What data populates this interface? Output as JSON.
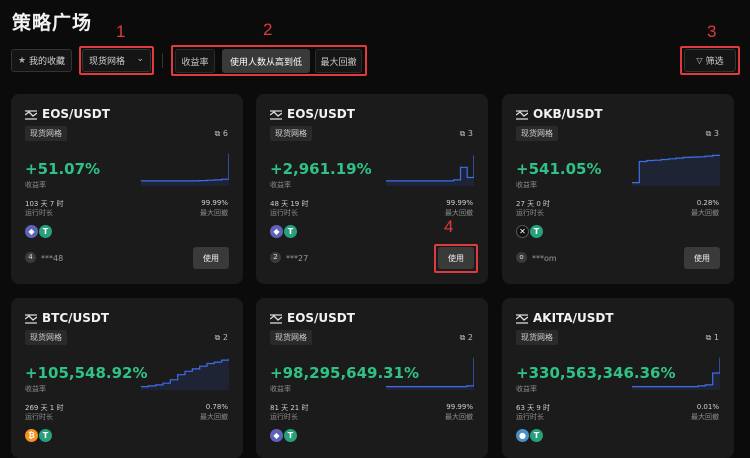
{
  "page_title": "策略广场",
  "toolbar": {
    "favorites_label": "我的收藏",
    "grid_type_label": "现货网格",
    "sort_options": [
      "收益率",
      "使用人数从高到低",
      "最大回撤"
    ],
    "filter_label": "筛选"
  },
  "annotations": [
    "1",
    "2",
    "3",
    "4"
  ],
  "cards": [
    {
      "pair": "EOS/USDT",
      "tag": "现货网格",
      "copies": "6",
      "return": "+51.07%",
      "return_label": "收益率",
      "runtime": "103 天 7 时",
      "runtime_label": "运行时长",
      "drawdown": "99.99%",
      "drawdown_label": "最大回撤",
      "user_avatar": "4",
      "user": "***48",
      "use_label": "使用",
      "spark": [
        0.15,
        0.15,
        0.15,
        0.15,
        0.15,
        0.15,
        0.15,
        0.15,
        0.16,
        0.17,
        0.18,
        0.2,
        0.95
      ]
    },
    {
      "pair": "EOS/USDT",
      "tag": "现货网格",
      "copies": "3",
      "return": "+2,961.19%",
      "return_label": "收益率",
      "runtime": "48 天 19 时",
      "runtime_label": "运行时长",
      "drawdown": "99.99%",
      "drawdown_label": "最大回撤",
      "user_avatar": "2",
      "user": "***27",
      "use_label": "使用",
      "spark": [
        0.15,
        0.15,
        0.15,
        0.15,
        0.15,
        0.15,
        0.15,
        0.15,
        0.15,
        0.15,
        0.18,
        0.55,
        0.25,
        0.9
      ]
    },
    {
      "pair": "OKB/USDT",
      "tag": "现货网格",
      "copies": "3",
      "return": "+541.05%",
      "return_label": "收益率",
      "runtime": "27 天 0 时",
      "runtime_label": "运行时长",
      "drawdown": "0.28%",
      "drawdown_label": "最大回撤",
      "user_avatar": "o",
      "user": "***om",
      "use_label": "使用",
      "spark": [
        0.1,
        0.72,
        0.75,
        0.76,
        0.78,
        0.8,
        0.82,
        0.84,
        0.85,
        0.86,
        0.88,
        0.9,
        0.92
      ]
    },
    {
      "pair": "BTC/USDT",
      "tag": "现货网格",
      "copies": "2",
      "return": "+105,548.92%",
      "return_label": "收益率",
      "runtime": "269 天 1 时",
      "runtime_label": "运行时长",
      "drawdown": "0.78%",
      "drawdown_label": "最大回撤",
      "user_avatar": "",
      "user": "",
      "use_label": "使用",
      "spark": [
        0.1,
        0.12,
        0.15,
        0.2,
        0.3,
        0.45,
        0.55,
        0.62,
        0.7,
        0.78,
        0.82,
        0.88,
        0.92
      ]
    },
    {
      "pair": "EOS/USDT",
      "tag": "现货网格",
      "copies": "2",
      "return": "+98,295,649.31%",
      "return_label": "收益率",
      "runtime": "81 天 21 时",
      "runtime_label": "运行时长",
      "drawdown": "99.99%",
      "drawdown_label": "最大回撤",
      "user_avatar": "",
      "user": "",
      "use_label": "使用",
      "spark": [
        0.1,
        0.1,
        0.1,
        0.1,
        0.1,
        0.1,
        0.1,
        0.1,
        0.1,
        0.1,
        0.1,
        0.12,
        0.95
      ]
    },
    {
      "pair": "AKITA/USDT",
      "tag": "现货网格",
      "copies": "1",
      "return": "+330,563,346.36%",
      "return_label": "收益率",
      "runtime": "63 天 9 时",
      "runtime_label": "运行时长",
      "drawdown": "0.01%",
      "drawdown_label": "最大回撤",
      "user_avatar": "",
      "user": "",
      "use_label": "使用",
      "spark": [
        0.1,
        0.1,
        0.1,
        0.1,
        0.1,
        0.1,
        0.1,
        0.1,
        0.1,
        0.12,
        0.15,
        0.5,
        0.95
      ]
    }
  ],
  "colors": {
    "positive": "#2fc285",
    "highlight": "#e0393e",
    "spark_line": "#3d6ef0"
  }
}
